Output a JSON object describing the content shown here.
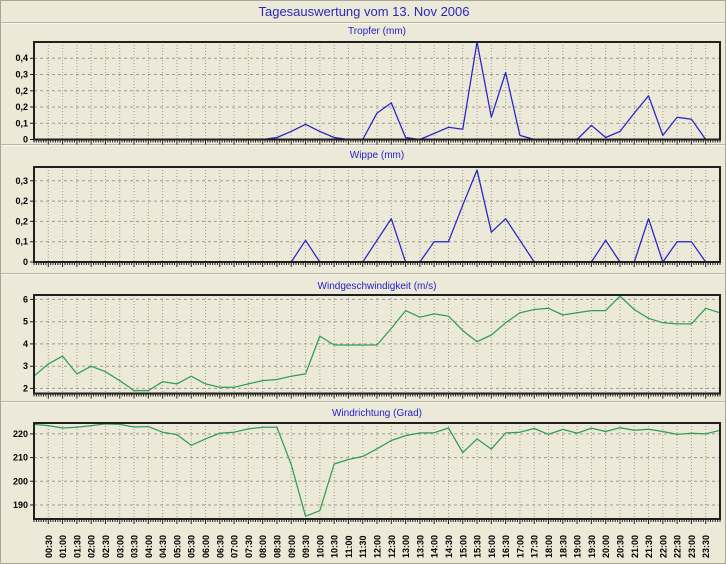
{
  "window_title": "Tagesauswertung vom 13. Nov 2006",
  "colors": {
    "background": "#ece9d8",
    "title_text": "#2929b8",
    "chart_title_text": "#2222cc",
    "rain_line_blue": "#2424c8",
    "wind_line_green": "#2f9e55",
    "grid": "#9c9c90",
    "axis_border": "#202020",
    "tick_label_text": "#000000"
  },
  "x_axis": {
    "tick_labels": [
      "00:30",
      "01:00",
      "01:30",
      "02:00",
      "02:30",
      "03:00",
      "03:30",
      "04:00",
      "04:30",
      "05:00",
      "05:30",
      "06:00",
      "06:30",
      "07:00",
      "07:30",
      "08:00",
      "08:30",
      "09:00",
      "09:30",
      "10:00",
      "10:30",
      "11:00",
      "11:30",
      "12:00",
      "12:30",
      "13:00",
      "13:30",
      "14:00",
      "14:30",
      "15:00",
      "15:30",
      "16:00",
      "16:30",
      "17:00",
      "17:30",
      "18:00",
      "18:30",
      "19:00",
      "19:30",
      "20:00",
      "20:30",
      "21:00",
      "21:30",
      "22:00",
      "22:30",
      "23:00",
      "23:30"
    ]
  },
  "chart_data": [
    {
      "type": "line",
      "title": "Tropfer (mm)",
      "line_color": "#2424c8",
      "ylim": [
        0,
        0.48
      ],
      "y_gridlines": [
        {
          "value": 0.4,
          "label": "0,4"
        },
        {
          "value": 0.32,
          "label": "0,3"
        },
        {
          "value": 0.24,
          "label": "0,2"
        },
        {
          "value": 0.16,
          "label": "0,2"
        },
        {
          "value": 0.08,
          "label": "0,1"
        },
        {
          "value": 0,
          "label": "0"
        }
      ],
      "values": [
        0,
        0,
        0,
        0,
        0,
        0,
        0,
        0,
        0,
        0,
        0,
        0,
        0,
        0,
        0,
        0,
        0.01,
        0.04,
        0.075,
        0.04,
        0.01,
        0,
        0,
        0.13,
        0.18,
        0.01,
        0,
        0.03,
        0.06,
        0.05,
        0.48,
        0.11,
        0.33,
        0.02,
        0,
        0,
        0,
        0,
        0.07,
        0.01,
        0.04,
        0.13,
        0.215,
        0.02,
        0.11,
        0.1,
        0
      ],
      "edge_values": [
        0,
        0
      ]
    },
    {
      "type": "line",
      "title": "Wippe (mm)",
      "line_color": "#2424c8",
      "ylim": [
        0,
        0.351
      ],
      "y_gridlines": [
        {
          "value": 0.3,
          "label": "0,3"
        },
        {
          "value": 0.225,
          "label": "0,2"
        },
        {
          "value": 0.15,
          "label": "0,2"
        },
        {
          "value": 0.075,
          "label": "0,1"
        },
        {
          "value": 0,
          "label": "0"
        }
      ],
      "values": [
        0,
        0,
        0,
        0,
        0,
        0,
        0,
        0,
        0,
        0,
        0,
        0,
        0,
        0,
        0,
        0,
        0,
        0,
        0.08,
        0,
        0,
        0,
        0,
        0.08,
        0.16,
        0,
        0,
        0.075,
        0.075,
        0.21,
        0.34,
        0.11,
        0.16,
        0.08,
        0,
        0,
        0,
        0,
        0,
        0.08,
        0,
        0,
        0.16,
        0,
        0.075,
        0.075,
        0
      ],
      "edge_values": [
        0,
        0
      ]
    },
    {
      "type": "line",
      "title": "Windgeschwindigkeit (m/s)",
      "line_color": "#2f9e55",
      "ylim": [
        1.77,
        6.2
      ],
      "y_gridlines": [
        {
          "value": 6,
          "label": "6"
        },
        {
          "value": 5,
          "label": "5"
        },
        {
          "value": 4,
          "label": "4"
        },
        {
          "value": 3,
          "label": "3"
        },
        {
          "value": 2,
          "label": "2"
        }
      ],
      "values": [
        3.1,
        3.45,
        2.65,
        3.0,
        2.75,
        2.35,
        1.9,
        1.9,
        2.3,
        2.2,
        2.55,
        2.2,
        2.05,
        2.05,
        2.2,
        2.35,
        2.4,
        2.55,
        2.65,
        4.35,
        3.95,
        3.95,
        3.95,
        3.95,
        4.7,
        5.5,
        5.2,
        5.35,
        5.25,
        4.6,
        4.1,
        4.4,
        4.95,
        5.4,
        5.55,
        5.6,
        5.3,
        5.4,
        5.5,
        5.5,
        6.15,
        5.55,
        5.15,
        4.95,
        4.9,
        4.9,
        5.6
      ],
      "edge_values": [
        2.55,
        5.4
      ]
    },
    {
      "type": "line",
      "title": "Windrichtung (Grad)",
      "line_color": "#2f9e55",
      "ylim": [
        184.1,
        224.6
      ],
      "y_gridlines": [
        {
          "value": 220,
          "label": "220"
        },
        {
          "value": 210,
          "label": "210"
        },
        {
          "value": 200,
          "label": "200"
        },
        {
          "value": 190,
          "label": "190"
        }
      ],
      "values": [
        223.5,
        222.5,
        222.8,
        223.5,
        224.2,
        224.0,
        222.9,
        223.1,
        220.7,
        219.7,
        215.2,
        217.9,
        220.3,
        220.7,
        222.1,
        222.8,
        222.8,
        207.0,
        185.3,
        187.6,
        207.3,
        209.2,
        210.5,
        213.7,
        217.2,
        219.3,
        220.4,
        220.5,
        222.5,
        212.1,
        217.9,
        213.6,
        220.4,
        220.7,
        222.3,
        219.8,
        221.9,
        220.3,
        222.4,
        221.0,
        222.6,
        221.5,
        222.0,
        221.0,
        219.8,
        220.3,
        220.0
      ],
      "edge_values": [
        224.0,
        221.5
      ]
    }
  ]
}
